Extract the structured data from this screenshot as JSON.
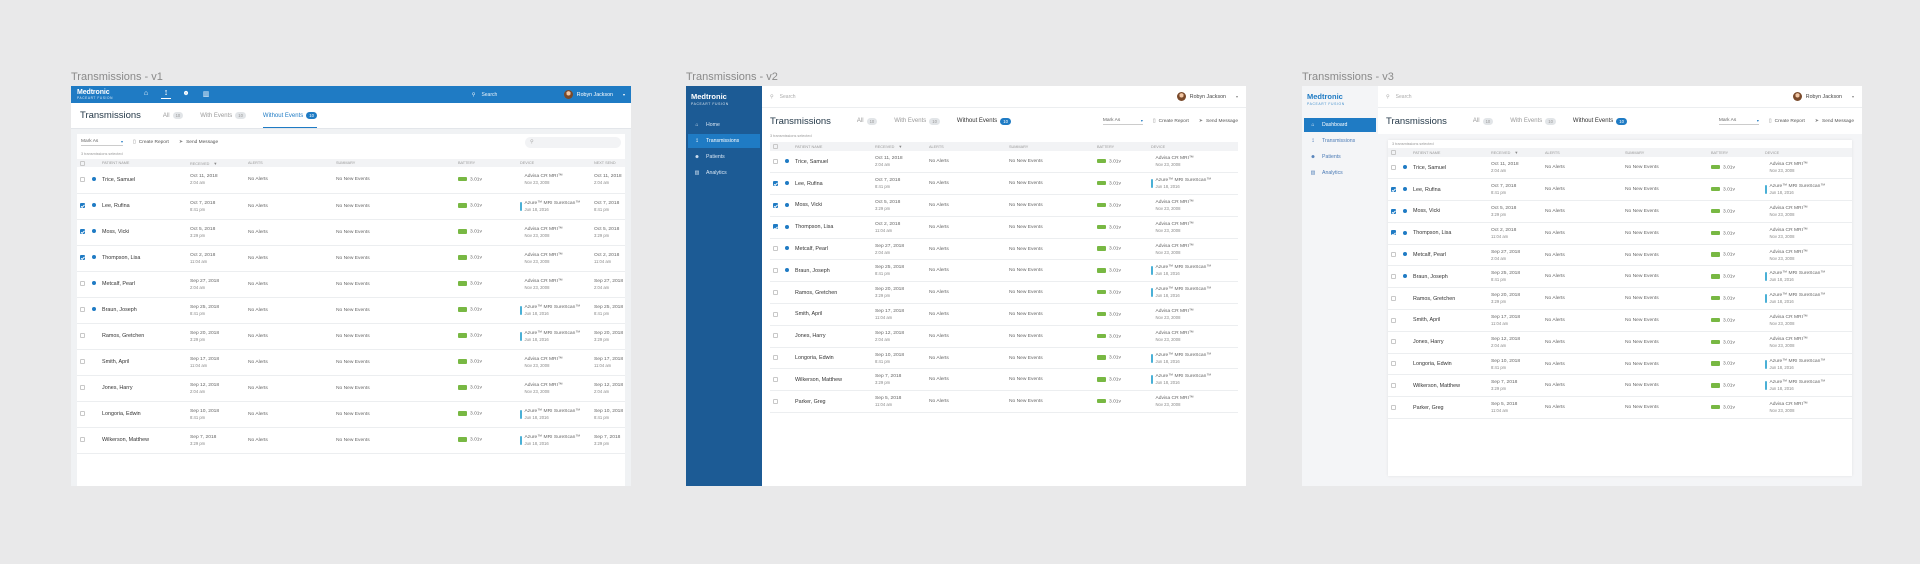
{
  "brand": {
    "name": "Medtronic",
    "sub": "PACEART FUSION"
  },
  "user": {
    "name": "Robyn Jackson"
  },
  "search": {
    "placeholder": "Search"
  },
  "page_title": "Transmissions",
  "tabs": [
    {
      "label": "All",
      "count": "10"
    },
    {
      "label": "With Events",
      "count": "10"
    },
    {
      "label": "Without Events",
      "count": "10"
    }
  ],
  "mark_as": "Mark As",
  "create_report": "Create Report",
  "send_message": "Send Message",
  "selected_text": "3 transmissions selected",
  "columns": {
    "patient": "PATIENT NAME",
    "received": "RECEIVED",
    "alerts": "ALERTS",
    "summary": "SUMMARY",
    "battery": "BATTERY",
    "device": "DEVICE",
    "next_send": "NEXT SEND"
  },
  "artboards": [
    {
      "title": "Transmissions - v1"
    },
    {
      "title": "Transmissions - v2"
    },
    {
      "title": "Transmissions - v3"
    }
  ],
  "nav_v2": [
    "Home",
    "Transmissions",
    "Patients",
    "Analytics"
  ],
  "nav_v3": [
    "Dashboard",
    "Transmissions",
    "Patients",
    "Analytics"
  ],
  "rows": [
    {
      "name": "Trice, Samuel",
      "checked": false,
      "dot": true,
      "date": "Oct 11, 2018",
      "time": "2:04 am",
      "alerts": "No Alerts",
      "summary": "No New Events",
      "battery": "3.01v",
      "device": "Advisa CR MRI™",
      "device_date": "Nov 23, 2008",
      "mri": false,
      "next_date": "Oct 11, 2018",
      "next_time": "2:04 am"
    },
    {
      "name": "Lee, Rufina",
      "checked": true,
      "dot": true,
      "date": "Oct 7, 2018",
      "time": "8:41 pm",
      "alerts": "No Alerts",
      "summary": "No New Events",
      "battery": "3.01v",
      "device": "Azure™ MRI SureScan™",
      "device_date": "Jun 18, 2016",
      "mri": true,
      "next_date": "Oct 7, 2018",
      "next_time": "8:41 pm"
    },
    {
      "name": "Moss, Vicki",
      "checked": true,
      "dot": true,
      "date": "Oct 5, 2018",
      "time": "3:29 pm",
      "alerts": "No Alerts",
      "summary": "No New Events",
      "battery": "3.01v",
      "device": "Advisa CR MRI™",
      "device_date": "Nov 23, 2008",
      "mri": false,
      "next_date": "Oct 5, 2018",
      "next_time": "3:29 pm"
    },
    {
      "name": "Thompson, Lisa",
      "checked": true,
      "dot": true,
      "date": "Oct 2, 2018",
      "time": "11:04 am",
      "alerts": "No Alerts",
      "summary": "No New Events",
      "battery": "3.01v",
      "device": "Advisa CR MRI™",
      "device_date": "Nov 23, 2008",
      "mri": false,
      "next_date": "Oct 2, 2018",
      "next_time": "11:04 am"
    },
    {
      "name": "Metcalf, Pearl",
      "checked": false,
      "dot": true,
      "date": "Sep 27, 2018",
      "time": "2:04 am",
      "alerts": "No Alerts",
      "summary": "No New Events",
      "battery": "3.01v",
      "device": "Advisa CR MRI™",
      "device_date": "Nov 23, 2008",
      "mri": false,
      "next_date": "Sep 27, 2018",
      "next_time": "2:04 am"
    },
    {
      "name": "Braun, Joseph",
      "checked": false,
      "dot": true,
      "date": "Sep 25, 2018",
      "time": "8:41 pm",
      "alerts": "No Alerts",
      "summary": "No New Events",
      "battery": "3.01v",
      "device": "Azure™ MRI SureScan™",
      "device_date": "Jun 18, 2016",
      "mri": true,
      "next_date": "Sep 25, 2018",
      "next_time": "8:41 pm"
    },
    {
      "name": "Ramos, Gretchen",
      "checked": false,
      "dot": false,
      "date": "Sep 20, 2018",
      "time": "3:29 pm",
      "alerts": "No Alerts",
      "summary": "No New Events",
      "battery": "3.01v",
      "device": "Azure™ MRI SureScan™",
      "device_date": "Jun 18, 2016",
      "mri": true,
      "next_date": "Sep 20, 2018",
      "next_time": "3:29 pm"
    },
    {
      "name": "Smith, April",
      "checked": false,
      "dot": false,
      "date": "Sep 17, 2018",
      "time": "11:04 am",
      "alerts": "No Alerts",
      "summary": "No New Events",
      "battery": "3.01v",
      "device": "Advisa CR MRI™",
      "device_date": "Nov 23, 2008",
      "mri": false,
      "next_date": "Sep 17, 2018",
      "next_time": "11:04 am"
    },
    {
      "name": "Jones, Harry",
      "checked": false,
      "dot": false,
      "date": "Sep 12, 2018",
      "time": "2:04 am",
      "alerts": "No Alerts",
      "summary": "No New Events",
      "battery": "3.01v",
      "device": "Advisa CR MRI™",
      "device_date": "Nov 23, 2008",
      "mri": false,
      "next_date": "Sep 12, 2018",
      "next_time": "2:04 am"
    },
    {
      "name": "Longoria, Edwin",
      "checked": false,
      "dot": false,
      "date": "Sep 10, 2018",
      "time": "8:41 pm",
      "alerts": "No Alerts",
      "summary": "No New Events",
      "battery": "3.01v",
      "device": "Azure™ MRI SureScan™",
      "device_date": "Jun 18, 2016",
      "mri": true,
      "next_date": "Sep 10, 2018",
      "next_time": "8:41 pm"
    },
    {
      "name": "Wilkerson, Matthew",
      "checked": false,
      "dot": false,
      "date": "Sep 7, 2018",
      "time": "3:29 pm",
      "alerts": "No Alerts",
      "summary": "No New Events",
      "battery": "3.01v",
      "device": "Azure™ MRI SureScan™",
      "device_date": "Jun 18, 2016",
      "mri": true,
      "next_date": "Sep 7, 2018",
      "next_time": "3:29 pm"
    },
    {
      "name": "Parker, Greg",
      "checked": false,
      "dot": false,
      "date": "Sep 5, 2018",
      "time": "11:04 am",
      "alerts": "No Alerts",
      "summary": "No New Events",
      "battery": "3.01v",
      "device": "Advisa CR MRI™",
      "device_date": "Nov 23, 2008",
      "mri": false,
      "next_date": "",
      "next_time": ""
    }
  ]
}
